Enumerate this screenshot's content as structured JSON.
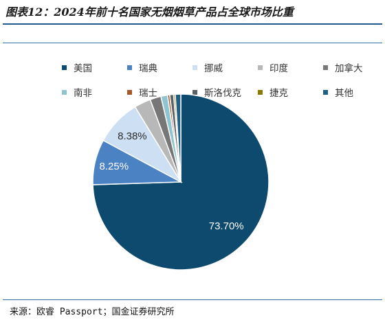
{
  "title": "图表12：2024年前十名国家无烟烟草产品占全球市场比重",
  "source": "来源：欧睿 Passport；国金证券研究所",
  "colors": {
    "us": "#0d4a6e",
    "se": "#4a82c4",
    "no": "#cddff2",
    "in": "#b8b8b8",
    "ca": "#777777",
    "za": "#8fc5d0",
    "ch": "#a8572a",
    "nz": "#5a6268",
    "cz": "#8a7a00",
    "other": "#1f5f82"
  },
  "chart_data": {
    "type": "pie",
    "title": "图表12：2024年前十名国家无烟烟草产品占全球市场比重",
    "legend_position": "top",
    "slices": [
      {
        "label": "美国",
        "value": 73.7,
        "display": "73.70%",
        "color_key": "us"
      },
      {
        "label": "瑞典",
        "value": 8.25,
        "display": "8.25%",
        "color_key": "se"
      },
      {
        "label": "挪威",
        "value": 8.38,
        "display": "8.38%",
        "color_key": "no"
      },
      {
        "label": "印度",
        "value": 3.0,
        "display": "",
        "color_key": "in"
      },
      {
        "label": "加拿大",
        "value": 2.0,
        "display": "",
        "color_key": "ca"
      },
      {
        "label": "南非",
        "value": 1.2,
        "display": "",
        "color_key": "za"
      },
      {
        "label": "瑞士",
        "value": 0.4,
        "display": "",
        "color_key": "ch"
      },
      {
        "label": "斯洛伐克",
        "value": 0.7,
        "display": "",
        "color_key": "nz"
      },
      {
        "label": "捷克",
        "value": 0.3,
        "display": "",
        "color_key": "cz"
      },
      {
        "label": "其他",
        "value": 1.0,
        "display": "",
        "color_key": "other"
      }
    ]
  }
}
